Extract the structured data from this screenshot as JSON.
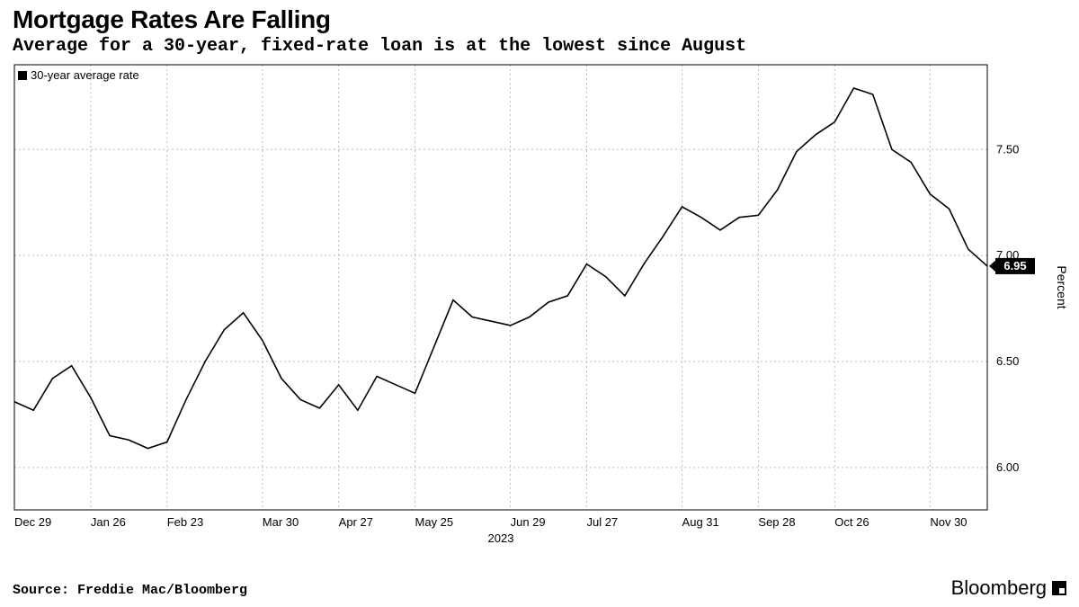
{
  "title": "Mortgage Rates Are Falling",
  "subtitle": "Average for a 30-year, fixed-rate loan is at the lowest since August",
  "source": "Source: Freddie Mac/Bloomberg",
  "brand": "Bloomberg",
  "chart": {
    "type": "line",
    "legend_label": "30-year average rate",
    "series_color": "#000000",
    "background_color": "#ffffff",
    "grid_color": "#bcbcbc",
    "border_color": "#000000",
    "line_width": 1.6,
    "y_axis": {
      "title": "Percent",
      "min": 5.8,
      "max": 7.9,
      "ticks": [
        6.0,
        6.5,
        7.0,
        7.5
      ],
      "tick_labels": [
        "6.00",
        "6.50",
        "7.00",
        "7.50"
      ]
    },
    "x_axis": {
      "period_label": "2023",
      "gridline_indices": [
        0,
        4,
        8,
        13,
        17,
        21,
        26,
        30,
        35,
        39,
        43,
        48
      ],
      "tick_labels": [
        "Dec 29",
        "Jan 26",
        "Feb 23",
        "Mar 30",
        "Apr 27",
        "May 25",
        "Jun 29",
        "Jul 27",
        "Aug 31",
        "Sep 28",
        "Oct 26",
        "Nov 30"
      ]
    },
    "values": [
      6.31,
      6.27,
      6.42,
      6.48,
      6.33,
      6.15,
      6.13,
      6.09,
      6.12,
      6.32,
      6.5,
      6.65,
      6.73,
      6.6,
      6.42,
      6.32,
      6.28,
      6.39,
      6.27,
      6.43,
      6.39,
      6.35,
      6.57,
      6.79,
      6.71,
      6.69,
      6.67,
      6.71,
      6.78,
      6.81,
      6.96,
      6.9,
      6.81,
      6.96,
      7.09,
      7.23,
      7.18,
      7.12,
      7.18,
      7.19,
      7.31,
      7.49,
      7.57,
      7.63,
      7.79,
      7.76,
      7.5,
      7.44,
      7.29,
      7.22,
      7.03,
      6.95
    ],
    "end_label": "6.95",
    "title_fontsize": 28,
    "subtitle_fontsize": 20,
    "label_fontsize": 13
  }
}
